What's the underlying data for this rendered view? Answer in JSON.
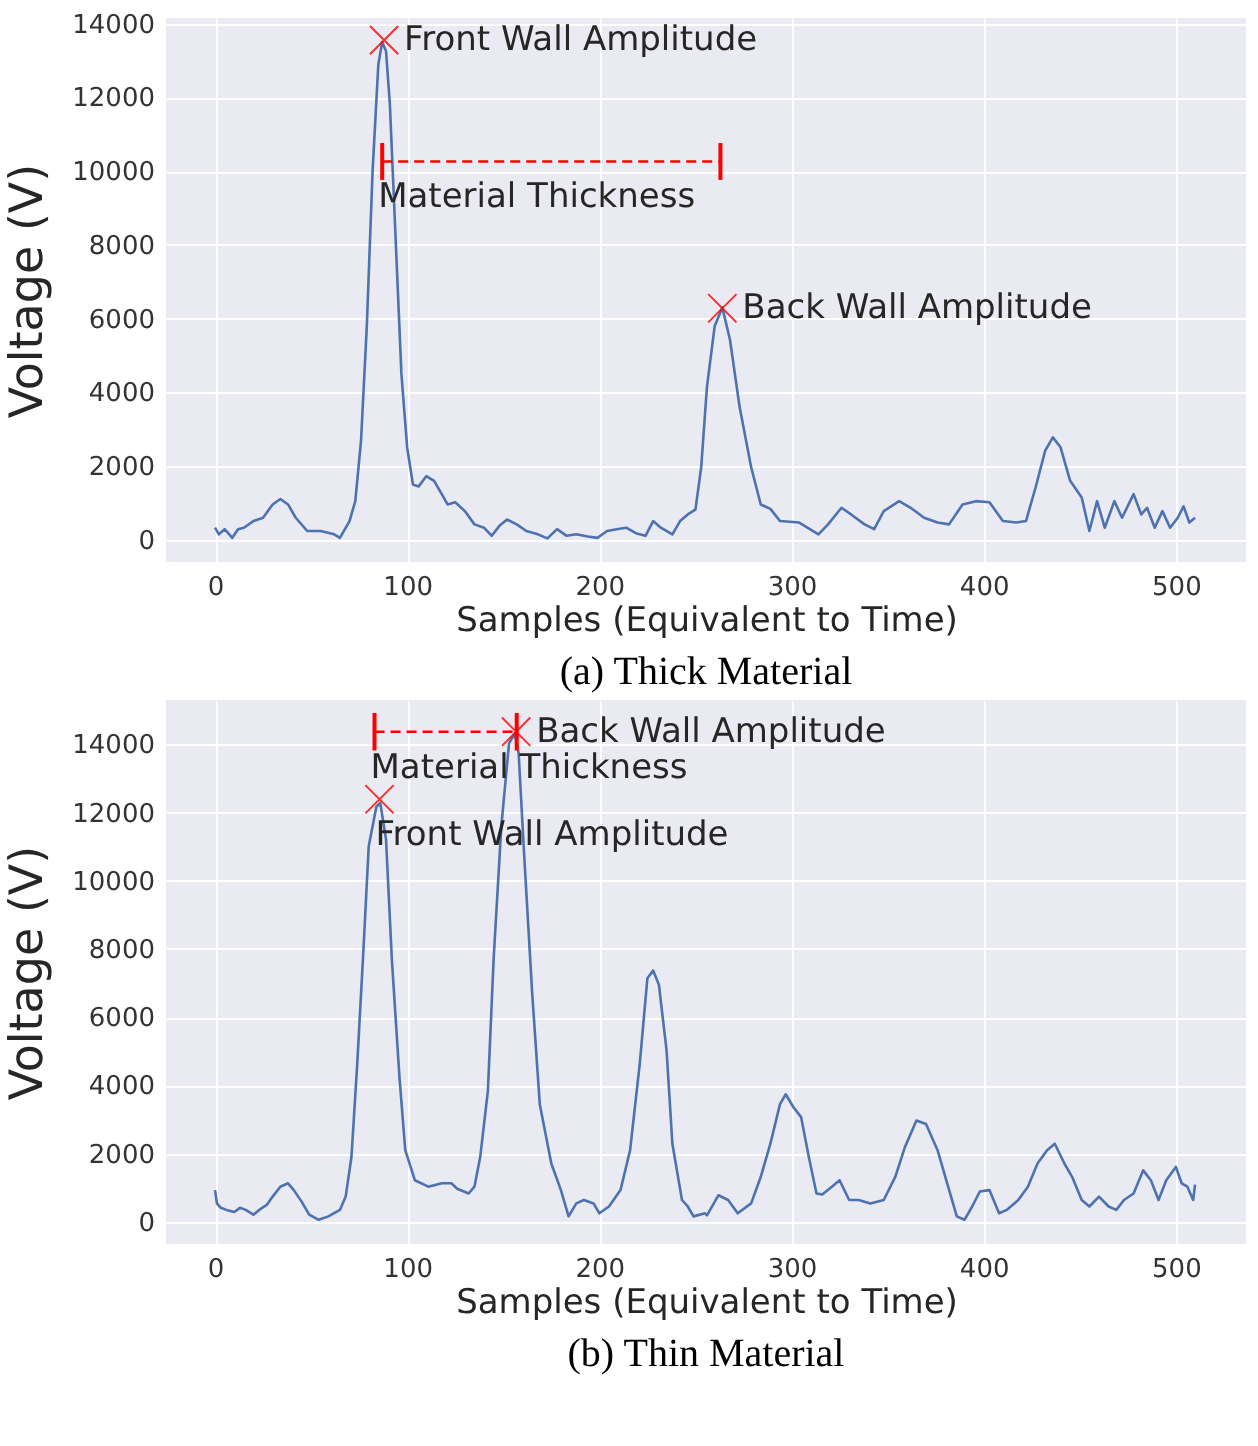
{
  "chart_data": [
    {
      "type": "line",
      "title": "(a) Thick Material",
      "xlabel": "Samples (Equivalent to Time)",
      "ylabel": "Voltage (V)",
      "xlim": [
        -25.5,
        536.5
      ],
      "ylim": [
        -600,
        14150
      ],
      "xticks": [
        0,
        100,
        200,
        300,
        400,
        500
      ],
      "yticks": [
        0,
        2000,
        4000,
        6000,
        8000,
        10000,
        12000,
        14000
      ],
      "grid": true,
      "series": [
        {
          "color": "#4c72b0",
          "x": [
            0,
            2,
            5,
            9,
            12,
            15,
            20,
            25,
            30,
            34,
            38,
            42,
            48,
            55,
            62,
            65,
            70,
            73,
            76,
            79,
            82,
            85,
            87,
            89,
            91,
            94,
            97,
            100,
            103,
            106,
            110,
            114,
            118,
            121,
            125,
            130,
            135,
            140,
            144,
            148,
            152,
            157,
            162,
            168,
            173,
            178,
            183,
            188,
            194,
            199,
            204,
            209,
            214,
            219,
            224,
            228,
            232,
            238,
            242,
            246,
            250,
            253,
            256,
            260,
            264,
            268,
            273,
            279,
            284,
            289,
            294,
            304,
            314,
            319,
            326,
            331,
            338,
            343,
            348,
            356,
            362,
            369,
            376,
            382,
            389,
            396,
            403,
            410,
            417,
            422,
            427,
            432,
            436,
            440,
            445,
            451,
            455,
            459,
            463,
            468,
            472,
            478,
            482,
            485,
            489,
            493,
            497,
            501,
            504,
            507,
            510
          ],
          "values": [
            330,
            150,
            290,
            55,
            290,
            330,
            510,
            600,
            960,
            1110,
            960,
            600,
            240,
            240,
            150,
            55,
            510,
            1050,
            2700,
            5800,
            10000,
            12900,
            13500,
            13250,
            11800,
            8150,
            4500,
            2500,
            1500,
            1450,
            1730,
            1600,
            1240,
            960,
            1020,
            780,
            420,
            330,
            110,
            380,
            550,
            420,
            240,
            150,
            40,
            290,
            110,
            150,
            90,
            55,
            240,
            290,
            330,
            180,
            110,
            510,
            330,
            150,
            510,
            690,
            820,
            1970,
            4150,
            5790,
            6300,
            5420,
            3600,
            1970,
            960,
            840,
            510,
            470,
            150,
            420,
            870,
            690,
            420,
            290,
            780,
            1050,
            870,
            600,
            470,
            420,
            960,
            1050,
            1020,
            510,
            470,
            510,
            1420,
            2420,
            2780,
            2510,
            1600,
            1150,
            240,
            1050,
            330,
            1050,
            600,
            1240,
            690,
            870,
            330,
            780,
            330,
            600,
            910,
            470,
            600
          ]
        },
        {
          "type": "line",
          "color": "#ff0000",
          "line_style": "dashed",
          "marker": "none",
          "x": [
            87,
            263
          ],
          "values": [
            10260,
            10260
          ],
          "errors": [
            500,
            500
          ]
        },
        {
          "type": "scatter",
          "color": "#ff0000",
          "marker": "cross",
          "x": [
            88,
            264
          ],
          "values": [
            13550,
            6280
          ]
        }
      ],
      "annotations": [
        {
          "text": "Front Wall Amplitude",
          "x": 88,
          "y": 13550
        },
        {
          "text": "Material Thickness",
          "x": 87,
          "y": 10260
        },
        {
          "text": "Back Wall Amplitude",
          "x": 264,
          "y": 6280
        }
      ]
    },
    {
      "type": "line",
      "title": "(b) Thin Material",
      "xlabel": "Samples (Equivalent to Time)",
      "ylabel": "Voltage (V)",
      "xlim": [
        -25.5,
        536.5
      ],
      "ylim": [
        -650,
        15300
      ],
      "xticks": [
        0,
        100,
        200,
        300,
        400,
        500
      ],
      "yticks": [
        0,
        2000,
        4000,
        6000,
        8000,
        10000,
        12000,
        14000
      ],
      "grid": true,
      "series": [
        {
          "color": "#4c72b0",
          "x": [
            0,
            1,
            3,
            6,
            10,
            13,
            16,
            20,
            23,
            27,
            30,
            34,
            38,
            41,
            45,
            49,
            54,
            59,
            65,
            68,
            71,
            74,
            77,
            80,
            84,
            86,
            89,
            92,
            96,
            99,
            104,
            111,
            118,
            123,
            126,
            132,
            135,
            138,
            142,
            145,
            149,
            153,
            156,
            158,
            161,
            165,
            169,
            175,
            180,
            184,
            188,
            192,
            197,
            200,
            205,
            211,
            216,
            221,
            225,
            228,
            231,
            235,
            238,
            243,
            246,
            249,
            255,
            256,
            262,
            267,
            272,
            279,
            284,
            289,
            294,
            297,
            301,
            305,
            309,
            313,
            316,
            321,
            325,
            330,
            335,
            341,
            348,
            354,
            359,
            365,
            370,
            376,
            381,
            386,
            390,
            394,
            398,
            403,
            408,
            412,
            418,
            423,
            428,
            433,
            437,
            442,
            446,
            451,
            455,
            460,
            465,
            469,
            473,
            478,
            483,
            487,
            491,
            495,
            500,
            503,
            506,
            509,
            510
          ],
          "values": [
            930,
            540,
            410,
            350,
            290,
            410,
            350,
            210,
            350,
            500,
            740,
            1030,
            1130,
            930,
            600,
            210,
            60,
            160,
            350,
            740,
            1900,
            4620,
            7720,
            11020,
            12180,
            12280,
            11210,
            7720,
            4230,
            2100,
            1220,
            1030,
            1130,
            1130,
            970,
            830,
            1030,
            1900,
            3840,
            7720,
            11600,
            14030,
            14320,
            13740,
            10630,
            6750,
            3450,
            1710,
            930,
            160,
            540,
            640,
            540,
            250,
            450,
            930,
            2100,
            4620,
            7140,
            7370,
            6950,
            5010,
            2290,
            640,
            450,
            160,
            250,
            190,
            780,
            640,
            250,
            540,
            1320,
            2290,
            3450,
            3740,
            3360,
            3070,
            1900,
            830,
            800,
            1030,
            1220,
            640,
            640,
            540,
            640,
            1320,
            2190,
            2970,
            2870,
            2100,
            1130,
            160,
            60,
            450,
            890,
            930,
            250,
            350,
            640,
            1030,
            1710,
            2100,
            2290,
            1710,
            1320,
            640,
            450,
            740,
            450,
            350,
            640,
            830,
            1510,
            1220,
            640,
            1220,
            1610,
            1130,
            1030,
            640,
            1090
          ]
        },
        {
          "type": "line",
          "color": "#ff0000",
          "line_style": "dashed",
          "marker": "none",
          "x": [
            83,
            157
          ],
          "values": [
            14370,
            14370
          ],
          "errors": [
            550,
            550
          ]
        },
        {
          "type": "scatter",
          "color": "#ff0000",
          "marker": "cross",
          "x": [
            85.6,
            156.7
          ],
          "values": [
            12390,
            14370
          ]
        }
      ],
      "annotations": [
        {
          "text": "Material Thickness",
          "x": 83,
          "y": 14370
        },
        {
          "text": "Front Wall Amplitude",
          "x": 85.6,
          "y": 12390
        },
        {
          "text": "Back Wall Amplitude",
          "x": 156.7,
          "y": 14370
        }
      ]
    }
  ]
}
